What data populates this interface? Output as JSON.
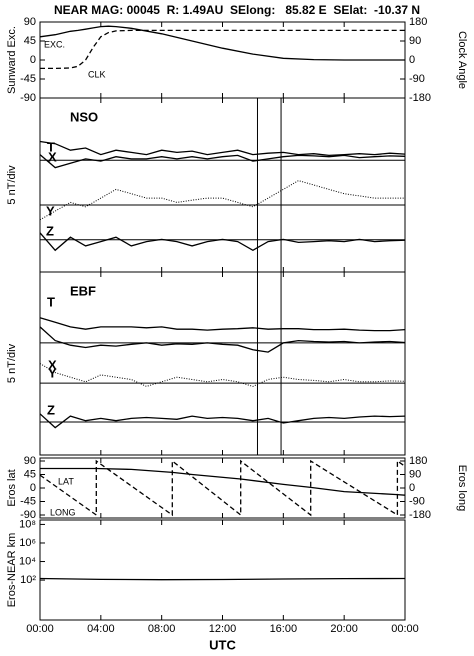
{
  "chart_data": [
    {
      "type": "line",
      "title": "NEAR MAG: 00045  R: 1.49AU  SElong:   85.82 E  SElat:  -10.37 N",
      "ylabel": "Sunward Exc.",
      "y2label": "Clock Angle",
      "xlim": [
        0,
        24
      ],
      "ylim": [
        -90,
        90
      ],
      "yticks": [
        -90,
        -45,
        0,
        45,
        90
      ],
      "y2lim": [
        -180,
        180
      ],
      "y2ticks": [
        -180,
        -90,
        0,
        90,
        180
      ],
      "x": [
        0,
        1,
        2,
        2.5,
        3,
        3.5,
        4,
        4.5,
        5,
        6,
        8,
        10,
        12,
        14,
        16,
        18,
        20,
        22,
        24
      ],
      "series": [
        {
          "name": "EXC.",
          "color": "#000000",
          "style": "solid",
          "values": [
            55,
            60,
            68,
            70,
            73,
            76,
            79,
            80,
            79,
            75,
            62,
            45,
            28,
            14,
            4,
            1,
            0,
            0,
            0
          ]
        },
        {
          "name": "CLK",
          "color": "#000000",
          "style": "dashed",
          "axis": "y2",
          "values": [
            -40,
            -40,
            -38,
            -30,
            0,
            60,
            110,
            130,
            138,
            140,
            140,
            140,
            140,
            140,
            140,
            140,
            140,
            140,
            140
          ]
        }
      ]
    },
    {
      "type": "line",
      "title": "NSO",
      "ylabel": "5 nT/div",
      "xlim": [
        0,
        24
      ],
      "ylim": [
        0,
        40
      ],
      "hlines": [
        25.7,
        15.4,
        7.4
      ],
      "vlines": [
        14.3,
        15.85
      ],
      "x": [
        0,
        1,
        2,
        3,
        4,
        5,
        6,
        7,
        8,
        9,
        10,
        11,
        12,
        13,
        14,
        15,
        16,
        17,
        18,
        19,
        20,
        21,
        22,
        23,
        24
      ],
      "series": [
        {
          "name": "T",
          "color": "#000000",
          "style": "solid",
          "values": [
            30,
            29.5,
            28,
            28.5,
            27,
            28,
            27.5,
            27,
            28,
            27.5,
            27.8,
            27,
            27.5,
            28,
            27,
            27.3,
            27.5,
            27,
            27.2,
            26.8,
            27,
            27.2,
            27,
            27.3,
            27.1
          ]
        },
        {
          "name": "X",
          "color": "#000000",
          "style": "solid",
          "values": [
            27,
            24,
            25,
            26,
            25.5,
            26.5,
            26,
            26,
            26.5,
            26,
            26.5,
            26,
            26.5,
            26.8,
            25.5,
            26,
            26.5,
            26.8,
            26.7,
            26.5,
            26.8,
            26.3,
            26.5,
            26.7,
            26.6
          ]
        },
        {
          "name": "Y",
          "color": "#000000",
          "style": "dotted",
          "values": [
            12,
            14,
            16,
            15,
            17,
            19,
            18,
            17,
            17,
            16,
            16.5,
            17,
            17,
            16,
            15,
            17,
            19,
            21,
            20,
            19,
            18,
            17.5,
            17,
            17,
            17
          ]
        },
        {
          "name": "Z",
          "color": "#000000",
          "style": "solid",
          "values": [
            9,
            5,
            8,
            6,
            7,
            8,
            6,
            7,
            7.5,
            7,
            6,
            7,
            7.5,
            7,
            5,
            7,
            7.5,
            6.8,
            7,
            7.2,
            7,
            7.5,
            7,
            7.2,
            7.3
          ]
        }
      ]
    },
    {
      "type": "line",
      "title": "EBF",
      "ylabel": "5 nT/div",
      "xlim": [
        0,
        24
      ],
      "ylim": [
        0,
        40
      ],
      "hlines": [
        24.5,
        15.7,
        7.2
      ],
      "vlines": [
        14.3,
        15.85
      ],
      "x": [
        0,
        1,
        2,
        3,
        4,
        5,
        6,
        7,
        8,
        9,
        10,
        11,
        12,
        13,
        14,
        15,
        16,
        17,
        18,
        19,
        20,
        21,
        22,
        23,
        24
      ],
      "series": [
        {
          "name": "T",
          "color": "#000000",
          "style": "solid",
          "values": [
            30,
            29,
            28,
            27.5,
            28,
            28,
            28,
            27.8,
            28,
            27.5,
            27.5,
            27.3,
            27.5,
            27.6,
            27.8,
            27.5,
            27.6,
            27.6,
            27.4,
            27.4,
            27.5,
            27.3,
            27.2,
            27.2,
            27.4
          ]
        },
        {
          "name": "X",
          "color": "#000000",
          "style": "solid",
          "values": [
            28,
            25,
            24,
            23.5,
            24,
            23.8,
            24.2,
            24.5,
            24,
            24.3,
            24.2,
            24.5,
            24.2,
            24,
            23,
            22.5,
            24.5,
            25,
            24.8,
            24.7,
            24.8,
            24.5,
            24.7,
            24.8,
            24.6
          ]
        },
        {
          "name": "Y",
          "color": "#000000",
          "style": "dotted",
          "values": [
            20,
            18,
            17,
            16,
            17.5,
            17,
            16.5,
            15,
            16,
            17,
            16.5,
            16,
            16.5,
            16,
            15,
            16.5,
            17,
            16.5,
            16.3,
            16,
            16.5,
            16,
            16,
            16.2,
            16.1
          ]
        },
        {
          "name": "Z",
          "color": "#000000",
          "style": "solid",
          "values": [
            9,
            6,
            8.5,
            7.5,
            8,
            7.5,
            8,
            8.2,
            8,
            7.8,
            8.5,
            8,
            8.2,
            8,
            7.5,
            8,
            7,
            7.5,
            8,
            8.2,
            8,
            8.3,
            8.5,
            8.4,
            8.5
          ]
        }
      ]
    },
    {
      "type": "line",
      "ylabel": "Eros lat",
      "y2label": "Eros long",
      "xlim": [
        0,
        24
      ],
      "ylim": [
        -100,
        100
      ],
      "yticks": [
        -90,
        -45,
        0,
        45,
        90
      ],
      "y2lim": [
        -200,
        200
      ],
      "y2ticks": [
        -180,
        -90,
        0,
        90,
        180
      ],
      "x": [
        0,
        2,
        3.7,
        3.7,
        6,
        8.7,
        8.7,
        10,
        13.2,
        13.2,
        16,
        17.8,
        17.8,
        20,
        23.5,
        23.5,
        24
      ],
      "series": [
        {
          "name": "LAT",
          "color": "#000000",
          "style": "solid",
          "values": [
            65,
            65,
            65,
            65,
            62,
            52,
            52,
            45,
            30,
            30,
            12,
            2,
            2,
            -12,
            -22,
            -22,
            -24
          ]
        },
        {
          "name": "LONG",
          "color": "#000000",
          "style": "dashed",
          "axis": "y2",
          "values": [
            86,
            -58,
            -180,
            180,
            14,
            -180,
            180,
            76,
            -180,
            180,
            -39,
            -180,
            180,
            41,
            -180,
            180,
            145
          ]
        }
      ]
    },
    {
      "type": "line",
      "ylabel": "Eros-NEAR km",
      "xlabel": "UTC",
      "ylog": true,
      "xlim": [
        0,
        24
      ],
      "ylim": [
        0.005,
        300000000
      ],
      "yticks": [
        {
          "value": 100,
          "label": "10²"
        },
        {
          "value": 10000,
          "label": "10⁴"
        },
        {
          "value": 1000000,
          "label": "10⁶"
        },
        {
          "value": 100000000,
          "label": "10⁸"
        }
      ],
      "xticks": [
        {
          "value": 0,
          "label": "00:00"
        },
        {
          "value": 4,
          "label": "04:00"
        },
        {
          "value": 8,
          "label": "08:00"
        },
        {
          "value": 12,
          "label": "12:00"
        },
        {
          "value": 16,
          "label": "16:00"
        },
        {
          "value": 20,
          "label": "20:00"
        },
        {
          "value": 24,
          "label": "00:00"
        }
      ],
      "x": [
        0,
        4,
        8,
        12,
        16,
        20,
        24
      ],
      "series": [
        {
          "name": "",
          "color": "#000000",
          "style": "solid",
          "values": [
            150,
            120,
            110,
            115,
            130,
            145,
            150
          ]
        }
      ]
    }
  ]
}
